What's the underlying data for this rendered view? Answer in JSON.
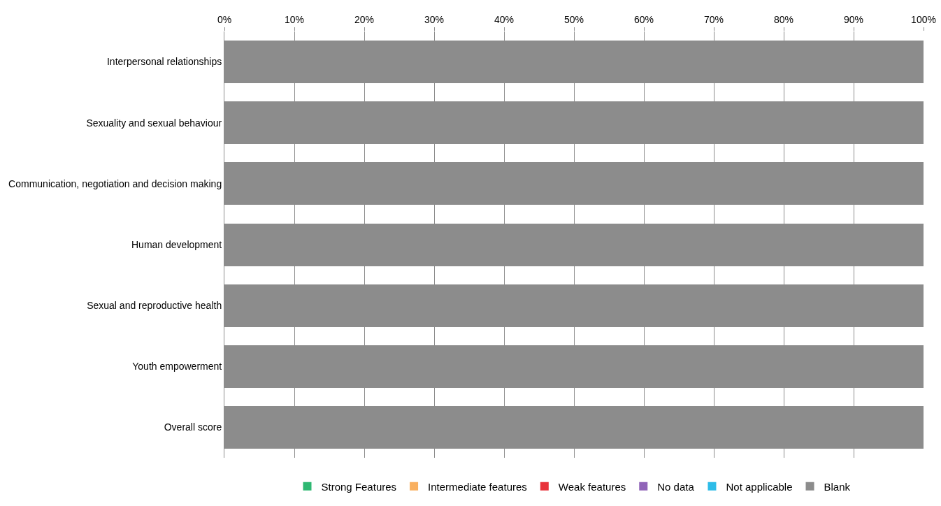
{
  "chart_data": {
    "type": "bar",
    "orientation": "horizontal",
    "stacked": true,
    "categories": [
      "Interpersonal relationships",
      "Sexuality and sexual behaviour",
      "Communication, negotiation and decision making",
      "Human development",
      "Sexual and reproductive health",
      "Youth empowerment",
      "Overall score"
    ],
    "series": [
      {
        "name": "Strong Features",
        "color": "#2eb872",
        "values": [
          0,
          0,
          0,
          0,
          0,
          0,
          0
        ]
      },
      {
        "name": "Intermediate features",
        "color": "#f9b060",
        "values": [
          0,
          0,
          0,
          0,
          0,
          0,
          0
        ]
      },
      {
        "name": "Weak features",
        "color": "#e8323a",
        "values": [
          0,
          0,
          0,
          0,
          0,
          0,
          0
        ]
      },
      {
        "name": "No data",
        "color": "#9064b8",
        "values": [
          0,
          0,
          0,
          0,
          0,
          0,
          0
        ]
      },
      {
        "name": "Not applicable",
        "color": "#2ebce8",
        "values": [
          0,
          0,
          0,
          0,
          0,
          0,
          0
        ]
      },
      {
        "name": "Blank",
        "color": "#8c8c8c",
        "values": [
          100,
          100,
          100,
          100,
          100,
          100,
          100
        ]
      }
    ],
    "xlim": [
      0,
      100
    ],
    "xticks": [
      {
        "value": 0,
        "label": "0%"
      },
      {
        "value": 10,
        "label": "10%"
      },
      {
        "value": 20,
        "label": "20%"
      },
      {
        "value": 30,
        "label": "30%"
      },
      {
        "value": 40,
        "label": "40%"
      },
      {
        "value": 50,
        "label": "50%"
      },
      {
        "value": 60,
        "label": "60%"
      },
      {
        "value": 70,
        "label": "70%"
      },
      {
        "value": 80,
        "label": "80%"
      },
      {
        "value": 90,
        "label": "90%"
      },
      {
        "value": 100,
        "label": "100%"
      }
    ],
    "grid": "x",
    "legend": "bottom"
  }
}
